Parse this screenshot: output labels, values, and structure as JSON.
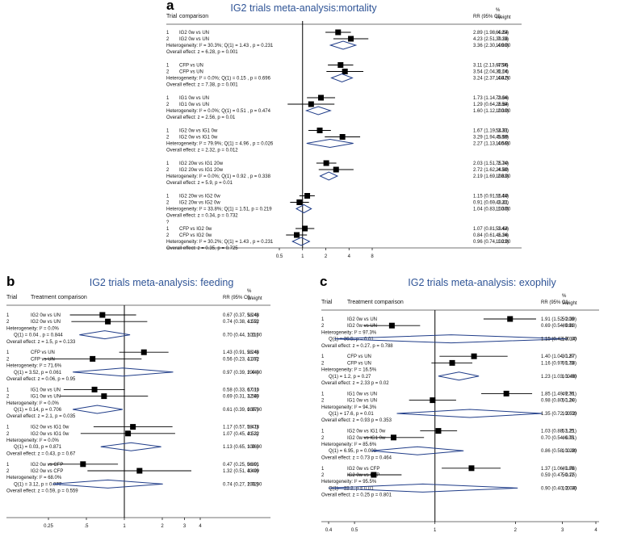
{
  "chart_data": [
    {
      "panel": "a",
      "type": "forest",
      "title": "IG2 trials meta-analysis:mortality",
      "columns": {
        "trial": "Trial",
        "comparison": "comparison",
        "rr": "RR (95% CI)",
        "weight_top": "%",
        "weight": "Weight"
      },
      "x_scale": "log",
      "xlim": [
        0.5,
        8
      ],
      "ticks": [
        "0.5",
        "1",
        "2",
        "4",
        "8"
      ],
      "tick_values": [
        0.5,
        1,
        2,
        4,
        8
      ],
      "groups": [
        {
          "studies": [
            {
              "trial": "1",
              "label": "IG2 0w vs UN",
              "rr": 2.89,
              "lo": 1.98,
              "hi": 4.23,
              "ci": "2.89 (1.98, 4.23)",
              "weight": "60.64"
            },
            {
              "trial": "2",
              "label": "IG2 0w vs UN",
              "rr": 4.23,
              "lo": 2.51,
              "hi": 7.13,
              "ci": "4.23 (2.51, 7.13)",
              "weight": "39.36"
            }
          ],
          "notes": [
            "Heterogeneity: I² = 30.3%; Q(1) = 1.43 , p = 0.231"
          ],
          "overall": {
            "rr": 3.36,
            "lo": 2.3,
            "hi": 4.9,
            "ci": "3.36 (2.30, 4.90)",
            "weight": "100.00"
          },
          "effect": "Overall effect: z = 6.28, p = 0.001"
        },
        {
          "studies": [
            {
              "trial": "1",
              "label": "CFP vs UN",
              "rr": 3.11,
              "lo": 2.13,
              "hi": 4.54,
              "ci": "3.11 (2.13, 4.54)",
              "weight": "67.96"
            },
            {
              "trial": "2",
              "label": "CFP vs UN",
              "rr": 3.54,
              "lo": 2.04,
              "hi": 6.14,
              "ci": "3.54 (2.04, 6.14)",
              "weight": "32.04"
            }
          ],
          "notes": [
            "Heterogeneity: I² = 0.0%; Q(1) = 0.15 , p = 0.696"
          ],
          "overall": {
            "rr": 3.24,
            "lo": 2.37,
            "hi": 4.42,
            "ci": "3.24 (2.37, 4.42)",
            "weight": "100.00"
          },
          "effect": "Overall effect: z = 7.38, p = 0.001"
        },
        {
          "studies": [
            {
              "trial": "1",
              "label": "IG1 0w vs UN",
              "rr": 1.73,
              "lo": 1.14,
              "hi": 2.64,
              "ci": "1.73 (1.14, 2.64)",
              "weight": "73.36"
            },
            {
              "trial": "2",
              "label": "IG1 0w vs UN",
              "rr": 1.29,
              "lo": 0.64,
              "hi": 2.59,
              "ci": "1.29 (0.64, 2.59)",
              "weight": "26.64"
            }
          ],
          "notes": [
            "Heterogeneity: I² = 0.0%; Q(1) = 0.51 , p = 0.474"
          ],
          "overall": {
            "rr": 1.6,
            "lo": 1.12,
            "hi": 2.3,
            "ci": "1.60 (1.12, 2.30)",
            "weight": "100.00"
          },
          "effect": "Overall effect: z = 2.56, p = 0.01"
        },
        {
          "studies": [
            {
              "trial": "1",
              "label": "IG2 0w vs IG1 0w",
              "rr": 1.67,
              "lo": 1.19,
              "hi": 2.33,
              "ci": "1.67 (1.19, 2.33)",
              "weight": "54.31"
            },
            {
              "trial": "2",
              "label": "IG2 0w vs IG1 0w",
              "rr": 3.29,
              "lo": 1.94,
              "hi": 5.58,
              "ci": "3.29 (1.94, 5.58)",
              "weight": "45.69"
            }
          ],
          "notes": [
            "Heterogeneity: I² = 79.9%; Q(1) = 4.96 , p = 0.026"
          ],
          "overall": {
            "rr": 2.27,
            "lo": 1.13,
            "hi": 4.56,
            "ci": "2.27 (1.13, 4.56)",
            "weight": "100.00"
          },
          "effect": "Overall effect: z = 2.32, p = 0.012"
        },
        {
          "studies": [
            {
              "trial": "1",
              "label": "IG2 20w vs IG1 20w",
              "rr": 2.03,
              "lo": 1.51,
              "hi": 2.74,
              "ci": "2.03 (1.51, 2.74)",
              "weight": "75.20"
            },
            {
              "trial": "2",
              "label": "IG2 20w vs IG1 20w",
              "rr": 2.72,
              "lo": 1.62,
              "hi": 4.58,
              "ci": "2.72 (1.62, 4.58)",
              "weight": "24.80"
            }
          ],
          "notes": [
            "Heterogeneity: I² = 0.0%; Q(1) = 0.92 , p = 0.338"
          ],
          "overall": {
            "rr": 2.19,
            "lo": 1.69,
            "hi": 2.83,
            "ci": "2.19 (1.69, 2.83)",
            "weight": "100.00"
          },
          "effect": "Overall effect: z = 5.9, p = 0.01"
        },
        {
          "studies": [
            {
              "trial": "1",
              "label": "IG2 20w vs IG2 0w",
              "rr": 1.15,
              "lo": 0.91,
              "hi": 1.44,
              "ci": "1.15 (0.91, 1.44)",
              "weight": "56.59"
            },
            {
              "trial": "2",
              "label": "IG2 20w vs IG2 0w",
              "rr": 0.91,
              "lo": 0.69,
              "hi": 1.21,
              "ci": "0.91 (0.69, 1.21)",
              "weight": "43.41"
            }
          ],
          "notes": [
            "Heterogeneity: I² = 33.8%; Q(1) = 1.51, p = 0.219"
          ],
          "overall": {
            "rr": 1.04,
            "lo": 0.83,
            "hi": 1.3,
            "ci": "1.04 (0.83, 1.30)",
            "weight": "100.00"
          },
          "effect": "Overall effect: z = 0.34, p = 0.732"
        },
        {
          "pre": "?",
          "studies": [
            {
              "trial": "1",
              "label": "CFP vs IG2 0w",
              "rr": 1.07,
              "lo": 0.81,
              "hi": 1.42,
              "ci": "1.07 (0.81, 1.42)",
              "weight": "53.64"
            },
            {
              "trial": "2",
              "label": "CFP vs IG2 0w",
              "rr": 0.84,
              "lo": 0.61,
              "hi": 1.14,
              "ci": "0.84 (0.61, 1.14)",
              "weight": "46.36"
            }
          ],
          "notes": [
            "Heterogeneity: I² = 30.2%; Q(1) = 1.43 , p = 0.231"
          ],
          "overall": {
            "rr": 0.96,
            "lo": 0.74,
            "hi": 1.23,
            "ci": "0.96 (0.74, 1.23)",
            "weight": "100.00"
          },
          "effect": "Overall effect: z = 0.35, p = 0.725"
        }
      ]
    },
    {
      "panel": "b",
      "type": "forest",
      "title": "IG2 trials meta-analysis: feeding",
      "columns": {
        "trial": "Trial",
        "comparison": "Treatment comparison",
        "rr": "RR (95% CI)",
        "weight_top": "%",
        "weight": "Weight"
      },
      "x_scale": "log",
      "xlim": [
        0.25,
        4
      ],
      "ticks": [
        "0.25",
        ".5",
        "1",
        "2",
        "3",
        "4"
      ],
      "tick_values": [
        0.25,
        0.5,
        1,
        2,
        3,
        4
      ],
      "groups": [
        {
          "studies": [
            {
              "trial": "1",
              "label": "IG2 0w vs UN",
              "rr": 0.67,
              "lo": 0.37,
              "hi": 1.24,
              "ci": "0.67 (0.37, 1.24)",
              "weight": "58.48"
            },
            {
              "trial": "2",
              "label": "IG2 0w vs UN",
              "rr": 0.74,
              "lo": 0.38,
              "hi": 1.52,
              "ci": "0.74 (0.38, 1.52)",
              "weight": "41.52"
            }
          ],
          "notes": [
            "Heterogeneity: I² = 0.0%",
            "Q(1) = 0.04 ,   p = 0.844"
          ],
          "overall": {
            "rr": 0.7,
            "lo": 0.44,
            "hi": 1.11,
            "ci": "0.70 (0.44, 1.11)",
            "weight": "100.00"
          },
          "effect": "Overall effect: z = 1.5, p = 0.133"
        },
        {
          "studies": [
            {
              "trial": "1",
              "label": "CFP vs UN",
              "rr": 1.43,
              "lo": 0.91,
              "hi": 2.24,
              "ci": "1.43 (0.91, 2.24)",
              "weight": "58.48"
            },
            {
              "trial": "2",
              "label": "CFP vs UN",
              "rr": 0.56,
              "lo": 0.23,
              "hi": 1.37,
              "ci": "0.56 (0.23, 1.37)",
              "weight": "41.52"
            }
          ],
          "notes": [
            "Heterogeneity: I² = 71.6%",
            "Q(1) = 3.52,  p = 0.061"
          ],
          "overall": {
            "rr": 0.97,
            "lo": 0.39,
            "hi": 2.44,
            "ci": "0.97 (0.39, 2.44)",
            "weight": "100.00"
          },
          "effect": "Overall effect: z = 0.06, p = 0.95"
        },
        {
          "studies": [
            {
              "trial": "1",
              "label": "IG1 0w vs UN",
              "rr": 0.58,
              "lo": 0.33,
              "hi": 1.01,
              "ci": "0.58 (0.33, 1.01)",
              "weight": "67.10"
            },
            {
              "trial": "2",
              "label": "IG1 0w vs UN",
              "rr": 0.69,
              "lo": 0.31,
              "hi": 1.54,
              "ci": "0.69 (0.31, 1.54)",
              "weight": "32.90"
            }
          ],
          "notes": [
            "Heterogeneity: I² = 0.0%",
            "Q(1) = 0.14,  p = 0.706"
          ],
          "overall": {
            "rr": 0.61,
            "lo": 0.39,
            "hi": 0.97,
            "ci": "0.61 (0.39, 0.97)",
            "weight": "100.00"
          },
          "effect": "Overall effect: z = 2.1, p = 0.035"
        },
        {
          "studies": [
            {
              "trial": "1",
              "label": "IG2 0w vs IG1 0w",
              "rr": 1.17,
              "lo": 0.57,
              "hi": 2.41,
              "ci": "1.17 (0.57, 2.41)",
              "weight": "58.78"
            },
            {
              "trial": "2",
              "label": "IG2 0w vs IG1 0w",
              "rr": 1.07,
              "lo": 0.45,
              "hi": 2.53,
              "ci": "1.07 (0.45, 2.53)",
              "weight": "41.22"
            }
          ],
          "notes": [
            "Heterogeneity: I² = 0.0%",
            "Q(1) = 0.03,  p = 0.871"
          ],
          "overall": {
            "rr": 1.13,
            "lo": 0.65,
            "hi": 1.96,
            "ci": "1.13 (0.65, 1.96)",
            "weight": "100.00"
          },
          "effect": "Overall effect: z = 0.43, p = 0.67"
        },
        {
          "studies": [
            {
              "trial": "1",
              "label": "IG2 0w vs CFP",
              "rr": 0.47,
              "lo": 0.25,
              "hi": 0.89,
              "ci": "0.47 (0.25, 0.89)",
              "weight": "56.01"
            },
            {
              "trial": "2",
              "label": "IG2 0w vs CFP",
              "rr": 1.32,
              "lo": 0.51,
              "hi": 3.4,
              "ci": "1.32 (0.51, 3.40)",
              "weight": "43.99"
            }
          ],
          "notes": [
            "Heterogeneity: I² = 68.0%",
            "Q(1) = 3.12,   p = 0.077"
          ],
          "overall": {
            "rr": 0.74,
            "lo": 0.27,
            "hi": 2.02,
            "ci": "0.74 (0.27, 2.02)",
            "weight": "100.00"
          },
          "effect": "Overall effect: z = 0.59, p = 0.559"
        }
      ]
    },
    {
      "panel": "c",
      "type": "forest",
      "title": "IG2 trials meta-analysis: exophily",
      "columns": {
        "trial": "Trial",
        "comparison": "Treatment comparison",
        "rr": "RR (95% CI)",
        "weight_top": "%",
        "weight": "Weight"
      },
      "x_scale": "log",
      "xlim": [
        0.4,
        4
      ],
      "ticks": [
        "0.4",
        "0.5",
        "1",
        "2",
        "3",
        "4"
      ],
      "tick_values": [
        0.4,
        0.5,
        1,
        2,
        3,
        4
      ],
      "groups": [
        {
          "studies": [
            {
              "trial": "1",
              "label": "IG2 0w vs UN",
              "rr": 1.91,
              "lo": 1.52,
              "hi": 2.39,
              "ci": "1.91 (1.52, 2.39)",
              "weight": "50.09"
            },
            {
              "trial": "2",
              "label": "IG2 0w vs UN",
              "rr": 0.69,
              "lo": 0.54,
              "hi": 0.88,
              "ci": "0.69 (0.54, 0.88)",
              "weight": "49.91"
            }
          ],
          "notes": [
            "Heterogeneity: I² = 97.3%",
            "Q(1) = 36.5, p = 0.01"
          ],
          "overall": {
            "rr": 1.15,
            "lo": 0.42,
            "hi": 3.14,
            "ci": "1.15 (0.42, 3.14)",
            "weight": "100.00"
          },
          "effect": "Overall effect: z = 0.27, p = 0.788"
        },
        {
          "studies": [
            {
              "trial": "1",
              "label": "CFP vs UN",
              "rr": 1.4,
              "lo": 1.04,
              "hi": 1.87,
              "ci": "1.40 (1.04, 1.87)",
              "weight": "30.27"
            },
            {
              "trial": "2",
              "label": "CFP vs UN",
              "rr": 1.16,
              "lo": 0.97,
              "hi": 1.38,
              "ci": "1.16 (0.97, 1.38)",
              "weight": "69.73"
            }
          ],
          "notes": [
            "Heterogeneity: I² = 16.5%",
            "Q(1) = 1.2, p = 0.27"
          ],
          "overall": {
            "rr": 1.23,
            "lo": 1.03,
            "hi": 1.46,
            "ci": "1.23 (1.03, 1.46)",
            "weight": "100.00"
          },
          "effect": "Overall effect: z = 2.33 p = 0.02"
        },
        {
          "studies": [
            {
              "trial": "1",
              "label": "IG1 0w vs UN",
              "rr": 1.85,
              "lo": 1.49,
              "hi": 2.31,
              "ci": "1.85 (1.49, 2.31)",
              "weight": "49.76"
            },
            {
              "trial": "2",
              "label": "IG1 0w vs UN",
              "rr": 0.98,
              "lo": 0.8,
              "hi": 1.2,
              "ci": "0.98 (0.80, 1.20)",
              "weight": "50.24"
            }
          ],
          "notes": [
            "Heterogeneity: I² = 94.3%",
            "Q(1) = 17.6, p = 0.01"
          ],
          "overall": {
            "rr": 1.35,
            "lo": 0.72,
            "hi": 2.52,
            "ci": "1.35 (0.72, 2.52)",
            "weight": "100.00"
          },
          "effect": "Overall effect: z = 0.93 p = 0.353"
        },
        {
          "studies": [
            {
              "trial": "1",
              "label": "IG2 0w vs IG1 0w",
              "rr": 1.03,
              "lo": 0.88,
              "hi": 1.21,
              "ci": "1.03 (0.88, 1.21)",
              "weight": "53.25"
            },
            {
              "trial": "2",
              "label": "IG2 0w vs IG1 0w",
              "rr": 0.7,
              "lo": 0.54,
              "hi": 0.91,
              "ci": "0.70 (0.54, 0.91)",
              "weight": "46.75"
            }
          ],
          "notes": [
            "Heterogeneity: I² = 85.6%",
            "Q(1) = 6.95, p = 0.008"
          ],
          "overall": {
            "rr": 0.86,
            "lo": 0.58,
            "hi": 1.28,
            "ci": "0.86 (0.58, 1.28)",
            "weight": "100.00"
          },
          "effect": "Overall effect: z = 0.73 p = 0.464"
        },
        {
          "studies": [
            {
              "trial": "1",
              "label": "IG2 0w vs CFP",
              "rr": 1.37,
              "lo": 1.06,
              "hi": 1.76,
              "ci": "1.37 (1.06, 1.76)",
              "weight": "49.88"
            },
            {
              "trial": "2",
              "label": "IG2 0w vs CFP",
              "rr": 0.59,
              "lo": 0.47,
              "hi": 0.75,
              "ci": "0.59 (0.47, 0.75)",
              "weight": "50.12"
            }
          ],
          "notes": [
            "Heterogeneity: I² = 95.5%",
            "Q(1) = 22.2, p = 0.01"
          ],
          "overall": {
            "rr": 0.9,
            "lo": 0.4,
            "hi": 2.04,
            "ci": "0.90 (0.40, 2.04)",
            "weight": "100.00"
          },
          "effect": "Overall effect: z = 0.25 p = 0.801"
        }
      ]
    }
  ],
  "colors": {
    "title": "#2f5496",
    "diamond": "#1f3c88",
    "marker": "#000000",
    "rule": "#444444"
  }
}
